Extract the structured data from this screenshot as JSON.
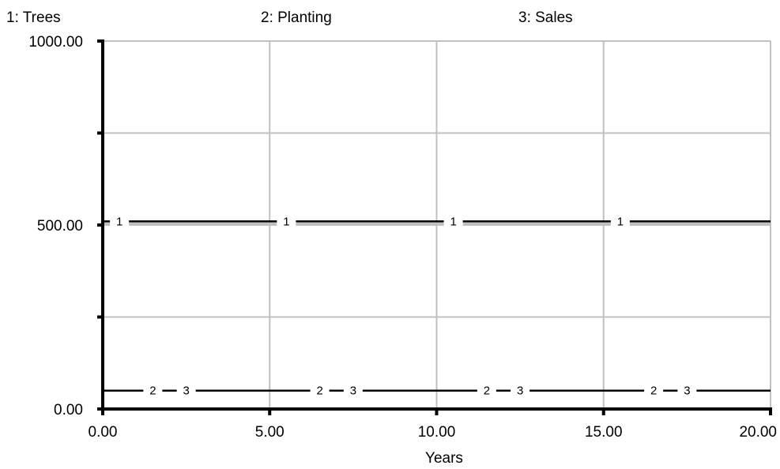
{
  "chart_data": {
    "type": "line",
    "xlabel": "Years",
    "ylabel": "",
    "xlim": [
      0,
      20
    ],
    "ylim": [
      0,
      1000
    ],
    "x_ticks": [
      "0.00",
      "5.00",
      "10.00",
      "15.00",
      "20.00"
    ],
    "y_ticks": [
      "0.00",
      "500.00",
      "1000.00"
    ],
    "grid": true,
    "legend": [
      "1: Trees",
      "2: Planting",
      "3: Sales"
    ],
    "series": [
      {
        "name": "1: Trees",
        "marker": "1",
        "x": [
          0,
          20
        ],
        "y": [
          510,
          510
        ],
        "marker_x": [
          0.5,
          5.5,
          10.5,
          15.5
        ]
      },
      {
        "name": "2: Planting",
        "marker": "2",
        "x": [
          0,
          20
        ],
        "y": [
          50,
          50
        ],
        "marker_x": [
          1.5,
          6.5,
          11.5,
          16.5
        ]
      },
      {
        "name": "3: Sales",
        "marker": "3",
        "x": [
          0,
          20
        ],
        "y": [
          50,
          50
        ],
        "marker_x": [
          2.5,
          7.5,
          12.5,
          17.5
        ]
      }
    ],
    "colors": {
      "line": "#000000",
      "grid": "#c0c0c0"
    }
  }
}
